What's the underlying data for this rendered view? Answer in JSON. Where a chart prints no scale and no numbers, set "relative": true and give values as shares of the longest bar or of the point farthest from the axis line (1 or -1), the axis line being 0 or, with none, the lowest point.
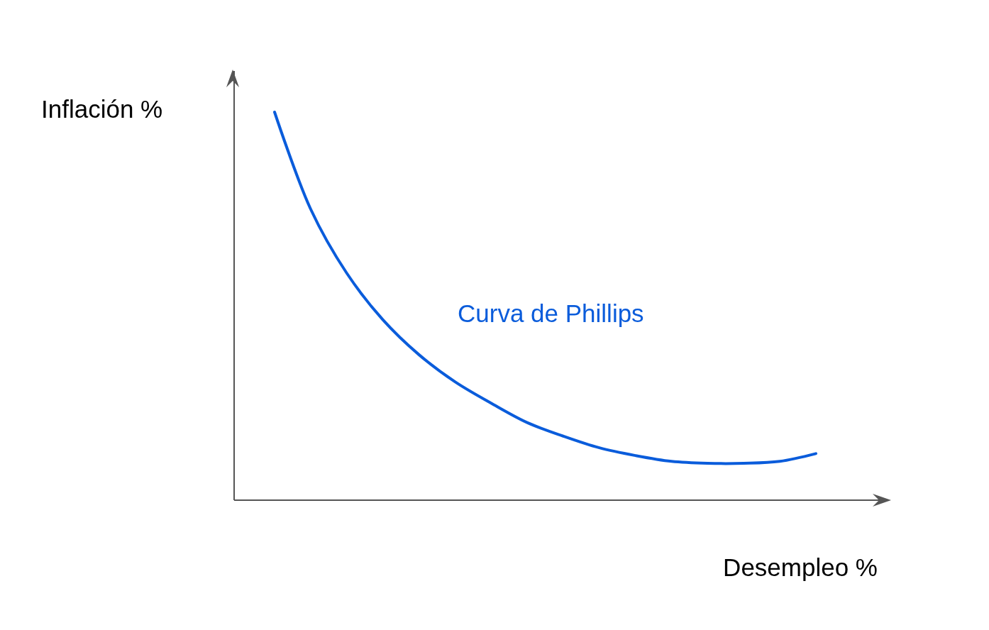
{
  "chart_data": {
    "type": "line",
    "relative": true,
    "xlabel": "Desempleo %",
    "ylabel": "Inflación %",
    "categories": [
      null,
      null,
      null,
      null,
      null,
      null,
      null,
      null,
      null,
      null,
      null,
      null,
      null,
      null,
      null,
      null
    ],
    "series": [
      {
        "name": "Curva de Phillips",
        "color": "#0a5cdb",
        "values": [
          1,
          0.75,
          0.585,
          0.465,
          0.375,
          0.305,
          0.25,
          0.2,
          0.165,
          0.135,
          0.115,
          0.1,
          0.095,
          0.095,
          0.1,
          0.12
        ]
      }
    ]
  }
}
